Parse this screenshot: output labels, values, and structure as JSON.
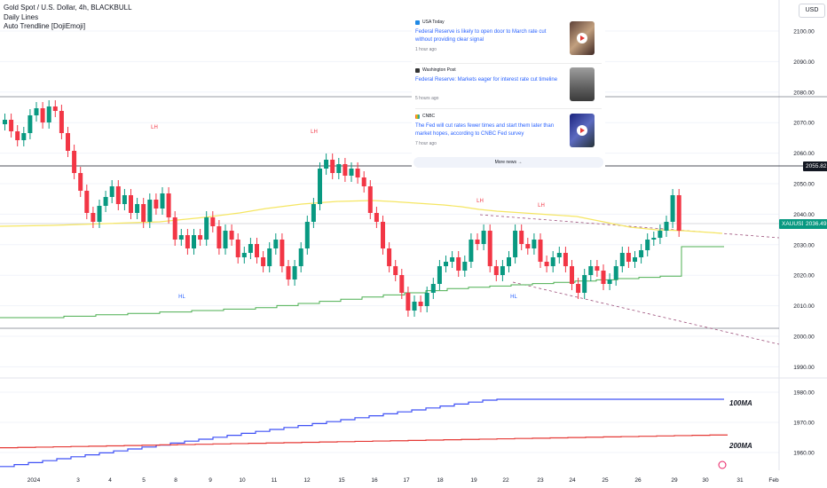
{
  "header": {
    "symbol_line": "Gold Spot / U.S. Dollar, 4h, BLACKBULL",
    "indicator_1": "Daily Lines",
    "indicator_2": "Auto Trendline [DojiEmoji]"
  },
  "currency_button": "USD",
  "price_axis": {
    "ticks": [
      "2100.00",
      "2090.00",
      "2080.00",
      "2070.00",
      "2060.00",
      "2050.00",
      "2040.00",
      "2030.00",
      "2020.00",
      "2010.00",
      "2000.00",
      "1990.00",
      "1980.00",
      "1970.00",
      "1960.00"
    ],
    "ticks_lower": [
      "1980.00",
      "1970.00",
      "1960.00"
    ],
    "level_label": "2055.82",
    "symbol_badge": "XAUUSD",
    "current_price": "2036.49"
  },
  "time_axis": [
    "2024",
    "3",
    "4",
    "5",
    "8",
    "9",
    "10",
    "11",
    "12",
    "15",
    "16",
    "17",
    "18",
    "19",
    "22",
    "23",
    "24",
    "25",
    "26",
    "29",
    "30",
    "31",
    "Feb"
  ],
  "annotations": {
    "lh": "LH",
    "hl": "HL",
    "ma100": "100MA",
    "ma200": "200MA"
  },
  "news": {
    "items": [
      {
        "source": "USA Today",
        "headline": "Federal Reserve is likely to open door to March rate cut without providing clear signal",
        "time": "1 hour ago",
        "icon": "usatoday-icon",
        "has_play": true
      },
      {
        "source": "Washington Post",
        "headline": "Federal Reserve: Markets eager for interest rate cut timeline",
        "time": "5 hours ago",
        "icon": "wapo-icon",
        "has_play": false
      },
      {
        "source": "CNBC",
        "headline": "The Fed will cut rates fewer times and start them later than market hopes, according to CNBC Fed survey",
        "time": "7 hour ago",
        "icon": "cnbc-icon",
        "has_play": true
      }
    ],
    "more_label": "More news"
  },
  "colors": {
    "up": "#089981",
    "down": "#f23645",
    "yellow": "#f5e663",
    "green_line": "#4caf50",
    "ma100": "#3f51f5",
    "ma200": "#e53935",
    "accent": "#2962ff"
  }
}
